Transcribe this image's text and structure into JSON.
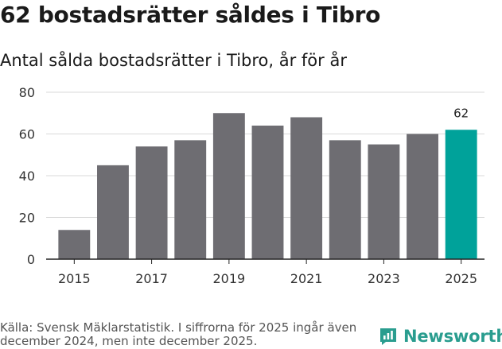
{
  "header": {
    "title": "62 bostadsrätter såldes i Tibro",
    "subtitle": "Antal sålda bostadsrätter i Tibro, år för år"
  },
  "chart_data": {
    "type": "bar",
    "categories": [
      "2015",
      "2016",
      "2017",
      "2018",
      "2019",
      "2020",
      "2021",
      "2022",
      "2023",
      "2024",
      "2025"
    ],
    "values": [
      14,
      45,
      54,
      57,
      70,
      64,
      68,
      57,
      55,
      60,
      62
    ],
    "x_tick_labels": [
      "2015",
      "2017",
      "2019",
      "2021",
      "2023",
      "2025"
    ],
    "y_ticks": [
      0,
      20,
      40,
      60,
      80
    ],
    "ylim": [
      0,
      80
    ],
    "grid": true,
    "bar_color": "#6e6d72",
    "highlight_color": "#00a29a",
    "highlight_index": 10,
    "data_labels": [
      {
        "index": 10,
        "text": "62"
      }
    ]
  },
  "footer": {
    "source": "Källa: Svensk Mäklarstatistik. I siffrorna för 2025 ingår även december 2024, men inte december 2025.",
    "brand": "Newsworthy"
  }
}
